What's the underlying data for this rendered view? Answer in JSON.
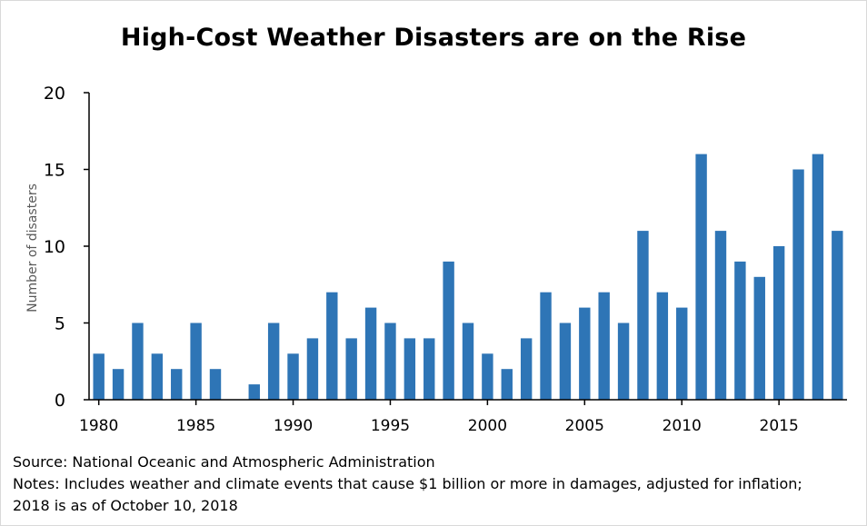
{
  "chart_data": {
    "type": "bar",
    "title": "High-Cost Weather Disasters are on the Rise",
    "ylabel": "Number of disasters",
    "xlabel": "",
    "ylim": [
      0,
      20
    ],
    "yticks": [
      0,
      5,
      10,
      15,
      20
    ],
    "xtick_labels": [
      "1980",
      "1985",
      "1990",
      "1995",
      "2000",
      "2005",
      "2010",
      "2015"
    ],
    "bar_color": "#2e75b6",
    "categories": [
      1980,
      1981,
      1982,
      1983,
      1984,
      1985,
      1986,
      1987,
      1988,
      1989,
      1990,
      1991,
      1992,
      1993,
      1994,
      1995,
      1996,
      1997,
      1998,
      1999,
      2000,
      2001,
      2002,
      2003,
      2004,
      2005,
      2006,
      2007,
      2008,
      2009,
      2010,
      2011,
      2012,
      2013,
      2014,
      2015,
      2016,
      2017,
      2018
    ],
    "values": [
      3,
      2,
      5,
      3,
      2,
      5,
      2,
      0,
      1,
      5,
      3,
      4,
      7,
      4,
      6,
      5,
      4,
      4,
      9,
      5,
      3,
      2,
      4,
      7,
      5,
      6,
      7,
      5,
      11,
      7,
      6,
      16,
      11,
      9,
      8,
      10,
      15,
      16,
      11
    ],
    "grid": false,
    "legend": "none"
  },
  "source_text": "Source: National Oceanic and Atmospheric Administration",
  "notes_line1": "Notes: Includes weather and climate events that cause $1 billion or more in damages, adjusted for inflation;",
  "notes_line2": "2018 is as of October 10, 2018"
}
